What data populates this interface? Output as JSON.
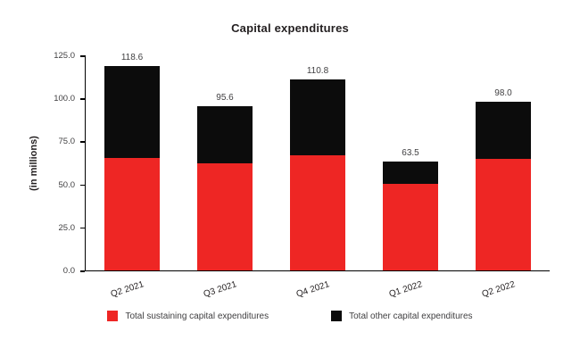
{
  "chart_data": {
    "type": "bar",
    "stacked": true,
    "title": "Capital expenditures",
    "ylabel": "(in millions)",
    "xlabel": "",
    "categories": [
      "Q2 2021",
      "Q3 2021",
      "Q4 2021",
      "Q1 2022",
      "Q2 2022"
    ],
    "series": [
      {
        "name": "Total sustaining capital expenditures",
        "color": "#ee2624",
        "values": [
          65.5,
          62.0,
          67.0,
          50.5,
          65.0
        ]
      },
      {
        "name": "Total other capital expenditures",
        "color": "#0c0c0c",
        "values": [
          53.1,
          33.6,
          43.8,
          13.0,
          33.0
        ]
      }
    ],
    "totals_labels": [
      "118.6",
      "95.6",
      "110.8",
      "63.5",
      "98.0"
    ],
    "yticks": [
      "0.0",
      "25.0",
      "50.0",
      "75.0",
      "100.0",
      "125.0"
    ],
    "ylim": [
      0,
      125
    ],
    "grid": false,
    "legend_position": "bottom"
  }
}
